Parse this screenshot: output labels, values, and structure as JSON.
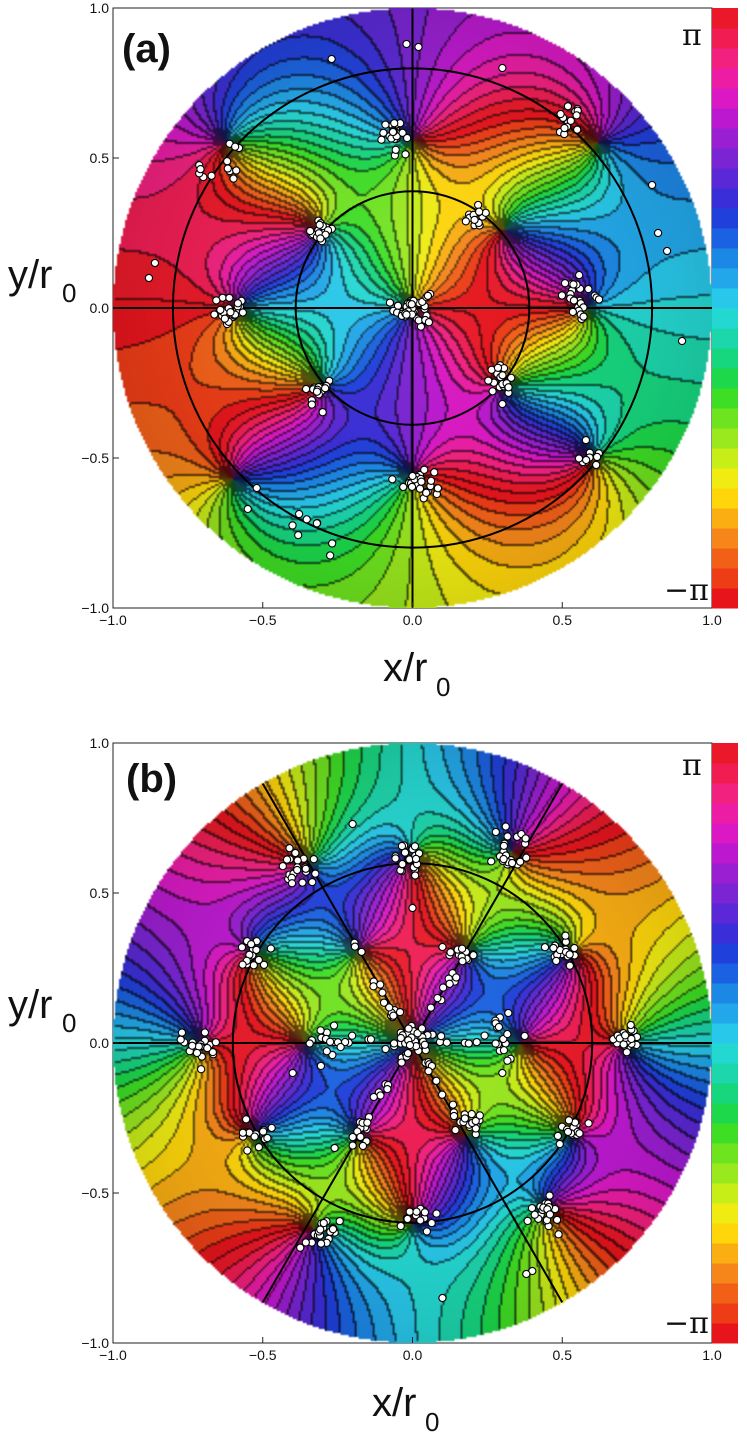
{
  "chart_data": [
    {
      "panel_label": "(a)",
      "type": "heatmap",
      "description_scale": "phase",
      "xlabel": "x/r",
      "xlabel_sub": "0",
      "ylabel": "y/r",
      "ylabel_sub": "0",
      "xlim": [
        -1.0,
        1.0
      ],
      "ylim": [
        -1.0,
        1.0
      ],
      "xticks": [
        "−1.0",
        "−0.5",
        "0.0",
        "0.5",
        "1.0"
      ],
      "yticks": [
        "−1.0",
        "−0.5",
        "0.0",
        "0.5",
        "1.0"
      ],
      "colorbar": {
        "top_label": "π",
        "bottom_label": "−π",
        "range": [
          -3.1416,
          3.1416
        ]
      },
      "domain_radius": 1.0,
      "inner_circles_r": [
        0.39,
        0.8
      ],
      "guide_line_angles_deg": [
        0,
        90
      ],
      "phase_winding": 0,
      "vortices": [
        {
          "x": 0.0,
          "y": 0.0,
          "q": 1
        },
        {
          "x": 0.0,
          "y": 0.56,
          "q": -1
        },
        {
          "x": 0.0,
          "y": -0.56,
          "q": -1
        },
        {
          "x": -0.31,
          "y": 0.26,
          "q": -1
        },
        {
          "x": 0.31,
          "y": 0.26,
          "q": -1
        },
        {
          "x": -0.31,
          "y": -0.26,
          "q": -1
        },
        {
          "x": 0.31,
          "y": -0.26,
          "q": -1
        },
        {
          "x": 0.58,
          "y": 0.0,
          "q": 1
        },
        {
          "x": -0.58,
          "y": 0.0,
          "q": 1
        },
        {
          "x": -0.62,
          "y": 0.55,
          "q": 1
        },
        {
          "x": 0.62,
          "y": 0.55,
          "q": 1
        },
        {
          "x": -0.6,
          "y": -0.57,
          "q": 1
        },
        {
          "x": 0.6,
          "y": -0.5,
          "q": 1
        }
      ],
      "points_clusters": [
        {
          "x": 0.0,
          "y": 0.0,
          "n": 40,
          "s": 0.03
        },
        {
          "x": -0.06,
          "y": 0.58,
          "n": 22,
          "s": 0.025
        },
        {
          "x": 0.02,
          "y": -0.58,
          "n": 28,
          "s": 0.025
        },
        {
          "x": -0.31,
          "y": 0.26,
          "n": 18,
          "s": 0.02
        },
        {
          "x": 0.21,
          "y": 0.3,
          "n": 14,
          "s": 0.02
        },
        {
          "x": -0.31,
          "y": -0.28,
          "n": 18,
          "s": 0.022
        },
        {
          "x": 0.29,
          "y": -0.24,
          "n": 20,
          "s": 0.022
        },
        {
          "x": 0.56,
          "y": 0.04,
          "n": 24,
          "s": 0.03
        },
        {
          "x": -0.6,
          "y": -0.02,
          "n": 26,
          "s": 0.03
        },
        {
          "x": -0.6,
          "y": 0.5,
          "n": 8,
          "s": 0.03
        },
        {
          "x": 0.52,
          "y": 0.62,
          "n": 16,
          "s": 0.025
        },
        {
          "x": 0.59,
          "y": -0.5,
          "n": 10,
          "s": 0.02
        },
        {
          "x": -0.35,
          "y": -0.76,
          "n": 8,
          "s": 0.04
        },
        {
          "x": -0.7,
          "y": 0.45,
          "n": 5,
          "s": 0.02
        }
      ],
      "points_extra": [
        [
          -0.86,
          0.15
        ],
        [
          -0.88,
          0.1
        ],
        [
          0.9,
          -0.11
        ],
        [
          0.82,
          0.25
        ],
        [
          0.85,
          0.19
        ],
        [
          0.8,
          0.41
        ],
        [
          0.3,
          0.8
        ],
        [
          -0.27,
          0.83
        ],
        [
          -0.02,
          0.88
        ],
        [
          0.02,
          0.87
        ],
        [
          -0.52,
          -0.6
        ],
        [
          -0.55,
          -0.67
        ],
        [
          0.0,
          -0.56
        ],
        [
          0.3,
          -0.32
        ]
      ]
    },
    {
      "panel_label": "(b)",
      "type": "heatmap",
      "description_scale": "phase",
      "xlabel": "x/r",
      "xlabel_sub": "0",
      "ylabel": "y/r",
      "ylabel_sub": "0",
      "xlim": [
        -1.0,
        1.0
      ],
      "ylim": [
        -1.0,
        1.0
      ],
      "xticks": [
        "−1.0",
        "−0.5",
        "0.0",
        "0.5",
        "1.0"
      ],
      "yticks": [
        "−1.0",
        "−0.5",
        "0.0",
        "0.5",
        "1.0"
      ],
      "colorbar": {
        "top_label": "π",
        "bottom_label": "−π",
        "range": [
          -3.1416,
          3.1416
        ]
      },
      "domain_radius": 1.0,
      "inner_circles_r": [
        0.6
      ],
      "guide_line_angles_deg": [
        0,
        60,
        120
      ],
      "phase_winding": 0,
      "vortices": [
        {
          "x": 0.0,
          "y": 0.0,
          "q": 2
        },
        {
          "x": 0.36,
          "y": 0.0,
          "q": -1
        },
        {
          "x": -0.36,
          "y": 0.0,
          "q": -1
        },
        {
          "x": 0.18,
          "y": 0.31,
          "q": -1
        },
        {
          "x": -0.18,
          "y": 0.31,
          "q": -1
        },
        {
          "x": 0.18,
          "y": -0.31,
          "q": -1
        },
        {
          "x": -0.18,
          "y": -0.31,
          "q": -1
        },
        {
          "x": 0.0,
          "y": 0.62,
          "q": 1
        },
        {
          "x": 0.0,
          "y": -0.6,
          "q": 1
        },
        {
          "x": 0.53,
          "y": 0.3,
          "q": 1
        },
        {
          "x": -0.53,
          "y": 0.3,
          "q": 1
        },
        {
          "x": 0.53,
          "y": -0.3,
          "q": 1
        },
        {
          "x": -0.53,
          "y": -0.3,
          "q": 1
        },
        {
          "x": 0.71,
          "y": 0.0,
          "q": -1
        },
        {
          "x": -0.71,
          "y": 0.0,
          "q": -1
        },
        {
          "x": 0.33,
          "y": 0.64,
          "q": -1
        },
        {
          "x": -0.35,
          "y": 0.6,
          "q": -1
        },
        {
          "x": 0.45,
          "y": -0.55,
          "q": -1
        },
        {
          "x": -0.33,
          "y": -0.62,
          "q": -1
        }
      ],
      "points_clusters": [
        {
          "x": 0.0,
          "y": 0.0,
          "n": 30,
          "s": 0.03
        },
        {
          "x": -0.01,
          "y": 0.61,
          "n": 22,
          "s": 0.025
        },
        {
          "x": 0.03,
          "y": -0.59,
          "n": 14,
          "s": 0.025
        },
        {
          "x": 0.33,
          "y": 0.64,
          "n": 24,
          "s": 0.035
        },
        {
          "x": -0.37,
          "y": 0.58,
          "n": 22,
          "s": 0.03
        },
        {
          "x": -0.53,
          "y": 0.3,
          "n": 16,
          "s": 0.025
        },
        {
          "x": 0.5,
          "y": 0.3,
          "n": 18,
          "s": 0.025
        },
        {
          "x": -0.53,
          "y": -0.3,
          "n": 14,
          "s": 0.025
        },
        {
          "x": 0.53,
          "y": -0.29,
          "n": 16,
          "s": 0.025
        },
        {
          "x": 0.71,
          "y": 0.01,
          "n": 22,
          "s": 0.025
        },
        {
          "x": -0.71,
          "y": -0.02,
          "n": 24,
          "s": 0.03
        },
        {
          "x": -0.3,
          "y": -0.63,
          "n": 20,
          "s": 0.035
        },
        {
          "x": 0.44,
          "y": -0.56,
          "n": 20,
          "s": 0.03
        },
        {
          "x": 0.17,
          "y": 0.29,
          "n": 14,
          "s": 0.02
        },
        {
          "x": -0.18,
          "y": -0.3,
          "n": 12,
          "s": 0.02
        },
        {
          "x": 0.2,
          "y": -0.27,
          "n": 12,
          "s": 0.02
        },
        {
          "x": -0.3,
          "y": 0.0,
          "n": 12,
          "s": 0.03
        },
        {
          "x": 0.3,
          "y": 0.02,
          "n": 14,
          "s": 0.03
        }
      ],
      "points_lines": [
        {
          "x1": 0.0,
          "y1": 0.0,
          "x2": -0.2,
          "y2": 0.33,
          "n": 18
        },
        {
          "x1": 0.0,
          "y1": 0.0,
          "x2": 0.16,
          "y2": 0.27,
          "n": 12
        },
        {
          "x1": 0.0,
          "y1": 0.0,
          "x2": 0.18,
          "y2": -0.3,
          "n": 14
        },
        {
          "x1": 0.0,
          "y1": 0.0,
          "x2": -0.18,
          "y2": -0.3,
          "n": 14
        },
        {
          "x1": 0.0,
          "y1": 0.0,
          "x2": 0.32,
          "y2": 0.0,
          "n": 12
        },
        {
          "x1": 0.0,
          "y1": 0.0,
          "x2": -0.32,
          "y2": 0.0,
          "n": 12
        }
      ],
      "points_extra": [
        [
          -0.2,
          0.73
        ],
        [
          0.4,
          -0.76
        ],
        [
          0.38,
          -0.77
        ],
        [
          0.1,
          -0.85
        ],
        [
          -0.26,
          -0.35
        ],
        [
          0.0,
          0.45
        ],
        [
          -0.4,
          -0.1
        ],
        [
          0.3,
          -0.1
        ],
        [
          0.32,
          0.1
        ],
        [
          0.1,
          0.32
        ]
      ]
    }
  ]
}
